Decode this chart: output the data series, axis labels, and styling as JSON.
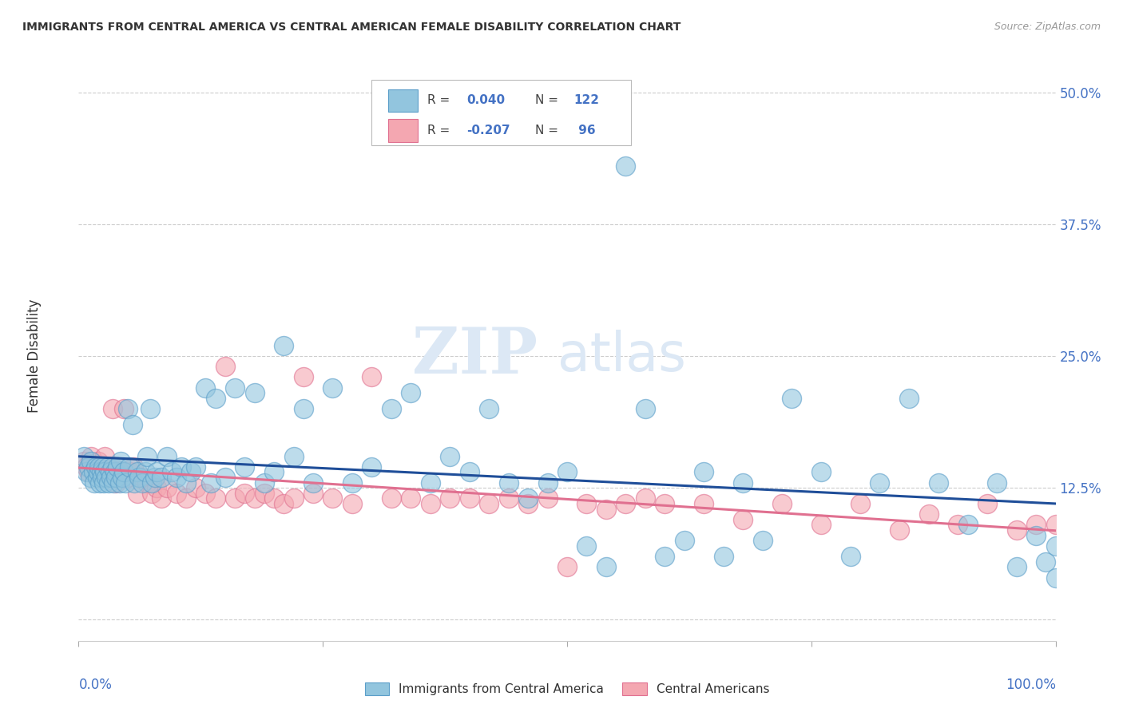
{
  "title": "IMMIGRANTS FROM CENTRAL AMERICA VS CENTRAL AMERICAN FEMALE DISABILITY CORRELATION CHART",
  "source": "Source: ZipAtlas.com",
  "ylabel": "Female Disability",
  "yticks": [
    0.0,
    0.125,
    0.25,
    0.375,
    0.5
  ],
  "ytick_labels": [
    "",
    "12.5%",
    "25.0%",
    "37.5%",
    "50.0%"
  ],
  "xlim": [
    0.0,
    1.0
  ],
  "ylim": [
    -0.02,
    0.52
  ],
  "blue_color": "#92c5de",
  "pink_color": "#f4a7b1",
  "blue_edge": "#5b9ec9",
  "pink_edge": "#e07090",
  "line_blue": "#1f4e99",
  "line_pink": "#e07090",
  "watermark_color": "#dce8f5",
  "blue_scatter_x": [
    0.005,
    0.008,
    0.01,
    0.012,
    0.013,
    0.015,
    0.016,
    0.018,
    0.019,
    0.02,
    0.021,
    0.022,
    0.023,
    0.024,
    0.025,
    0.026,
    0.027,
    0.028,
    0.03,
    0.031,
    0.032,
    0.033,
    0.035,
    0.036,
    0.037,
    0.038,
    0.04,
    0.042,
    0.043,
    0.045,
    0.046,
    0.048,
    0.05,
    0.052,
    0.055,
    0.057,
    0.06,
    0.062,
    0.065,
    0.068,
    0.07,
    0.073,
    0.075,
    0.078,
    0.08,
    0.085,
    0.09,
    0.095,
    0.1,
    0.105,
    0.11,
    0.115,
    0.12,
    0.13,
    0.135,
    0.14,
    0.15,
    0.16,
    0.17,
    0.18,
    0.19,
    0.2,
    0.21,
    0.22,
    0.23,
    0.24,
    0.26,
    0.28,
    0.3,
    0.32,
    0.34,
    0.36,
    0.38,
    0.4,
    0.42,
    0.44,
    0.46,
    0.48,
    0.5,
    0.52,
    0.54,
    0.56,
    0.58,
    0.6,
    0.62,
    0.64,
    0.66,
    0.68,
    0.7,
    0.73,
    0.76,
    0.79,
    0.82,
    0.85,
    0.88,
    0.91,
    0.94,
    0.96,
    0.98,
    0.99,
    1.0,
    1.0
  ],
  "blue_scatter_y": [
    0.155,
    0.14,
    0.145,
    0.135,
    0.15,
    0.14,
    0.13,
    0.145,
    0.135,
    0.14,
    0.145,
    0.13,
    0.14,
    0.135,
    0.145,
    0.13,
    0.14,
    0.135,
    0.145,
    0.13,
    0.14,
    0.135,
    0.145,
    0.13,
    0.14,
    0.135,
    0.145,
    0.13,
    0.15,
    0.135,
    0.14,
    0.13,
    0.2,
    0.145,
    0.185,
    0.13,
    0.14,
    0.135,
    0.13,
    0.14,
    0.155,
    0.2,
    0.13,
    0.135,
    0.14,
    0.135,
    0.155,
    0.14,
    0.135,
    0.145,
    0.13,
    0.14,
    0.145,
    0.22,
    0.13,
    0.21,
    0.135,
    0.22,
    0.145,
    0.215,
    0.13,
    0.14,
    0.26,
    0.155,
    0.2,
    0.13,
    0.22,
    0.13,
    0.145,
    0.2,
    0.215,
    0.13,
    0.155,
    0.14,
    0.2,
    0.13,
    0.115,
    0.13,
    0.14,
    0.07,
    0.05,
    0.43,
    0.2,
    0.06,
    0.075,
    0.14,
    0.06,
    0.13,
    0.075,
    0.21,
    0.14,
    0.06,
    0.13,
    0.21,
    0.13,
    0.09,
    0.13,
    0.05,
    0.08,
    0.055,
    0.04,
    0.07
  ],
  "pink_scatter_x": [
    0.005,
    0.008,
    0.01,
    0.013,
    0.015,
    0.017,
    0.02,
    0.022,
    0.025,
    0.027,
    0.03,
    0.032,
    0.035,
    0.038,
    0.04,
    0.043,
    0.046,
    0.05,
    0.053,
    0.056,
    0.06,
    0.065,
    0.07,
    0.075,
    0.08,
    0.085,
    0.09,
    0.1,
    0.11,
    0.12,
    0.13,
    0.14,
    0.15,
    0.16,
    0.17,
    0.18,
    0.19,
    0.2,
    0.21,
    0.22,
    0.23,
    0.24,
    0.26,
    0.28,
    0.3,
    0.32,
    0.34,
    0.36,
    0.38,
    0.4,
    0.42,
    0.44,
    0.46,
    0.48,
    0.5,
    0.52,
    0.54,
    0.56,
    0.58,
    0.6,
    0.64,
    0.68,
    0.72,
    0.76,
    0.8,
    0.84,
    0.87,
    0.9,
    0.93,
    0.96,
    0.98,
    1.0
  ],
  "pink_scatter_y": [
    0.15,
    0.145,
    0.14,
    0.155,
    0.145,
    0.14,
    0.15,
    0.145,
    0.14,
    0.155,
    0.14,
    0.145,
    0.2,
    0.13,
    0.145,
    0.14,
    0.2,
    0.135,
    0.14,
    0.145,
    0.12,
    0.135,
    0.13,
    0.12,
    0.125,
    0.115,
    0.125,
    0.12,
    0.115,
    0.125,
    0.12,
    0.115,
    0.24,
    0.115,
    0.12,
    0.115,
    0.12,
    0.115,
    0.11,
    0.115,
    0.23,
    0.12,
    0.115,
    0.11,
    0.23,
    0.115,
    0.115,
    0.11,
    0.115,
    0.115,
    0.11,
    0.115,
    0.11,
    0.115,
    0.05,
    0.11,
    0.105,
    0.11,
    0.115,
    0.11,
    0.11,
    0.095,
    0.11,
    0.09,
    0.11,
    0.085,
    0.1,
    0.09,
    0.11,
    0.085,
    0.09,
    0.09
  ]
}
